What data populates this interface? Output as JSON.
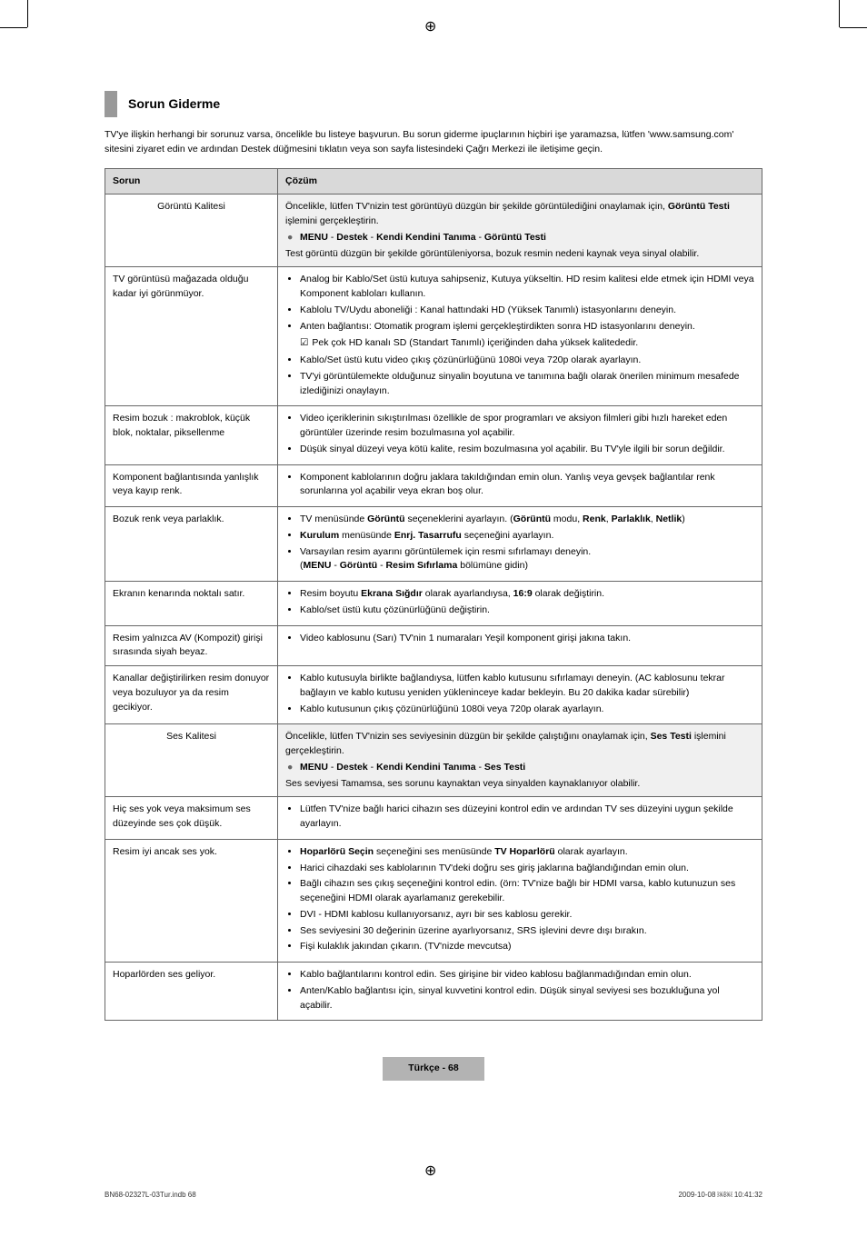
{
  "crop_marks": true,
  "section_title": "Sorun Giderme",
  "intro": "TV'ye ilişkin herhangi bir sorunuz varsa, öncelikle bu listeye başvurun. Bu sorun giderme ipuçlarının hiçbiri işe yaramazsa, lütfen 'www.samsung.com' sitesini ziyaret edin ve ardından Destek düğmesini tıklatın veya son sayfa listesindeki Çağrı Merkezi ile iletişime geçin.",
  "headers": {
    "problem": "Sorun",
    "solution": "Çözüm"
  },
  "rows": [
    {
      "category": "Görüntü Kalitesi",
      "solution_pre": "Öncelikle, lütfen TV'nizin test görüntüyü düzgün bir şekilde görüntülediğini onaylamak için, <b>Görüntü Testi</b> işlemini gerçekleştirin.",
      "menu_path": "MENU - Destek - Kendi Kendini Tanıma - Görüntü Testi",
      "solution_post": "Test görüntü düzgün bir şekilde görüntüleniyorsa, bozuk resmin nedeni kaynak veya sinyal olabilir."
    },
    {
      "problem": "TV görüntüsü mağazada olduğu kadar iyi görünmüyor.",
      "bullets": [
        "Analog bir Kablo/Set üstü kutuya sahipseniz, Kutuya yükseltin. HD resim kalitesi elde etmek için HDMI veya Komponent kabloları kullanın.",
        "Kablolu TV/Uydu aboneliği : Kanal hattındaki HD (Yüksek Tanımlı) istasyonlarını deneyin.",
        "Anten bağlantısı: Otomatik program işlemi gerçekleştirdikten sonra HD istasyonlarını deneyin."
      ],
      "note": "Pek çok HD kanalı SD (Standart Tanımlı) içeriğinden daha yüksek kalitededir.",
      "bullets2": [
        "Kablo/Set üstü kutu video çıkış çözünürlüğünü 1080i veya 720p olarak ayarlayın.",
        "TV'yi görüntülemekte olduğunuz sinyalin boyutuna ve tanımına bağlı olarak önerilen minimum mesafede izlediğinizi onaylayın."
      ]
    },
    {
      "problem": "Resim bozuk : makroblok, küçük blok, noktalar, piksellenme",
      "bullets": [
        "Video içeriklerinin sıkıştırılması özellikle de spor programları ve aksiyon filmleri gibi hızlı hareket eden görüntüler üzerinde resim bozulmasına yol açabilir.",
        "Düşük sinyal düzeyi veya kötü kalite, resim bozulmasına yol açabilir. Bu TV'yle ilgili bir sorun değildir."
      ]
    },
    {
      "problem": "Komponent bağlantısında yanlışlık veya kayıp renk.",
      "bullets": [
        "Komponent kablolarının doğru jaklara takıldığından emin olun. Yanlış veya gevşek bağlantılar renk sorunlarına yol açabilir veya ekran boş olur."
      ]
    },
    {
      "problem": "Bozuk renk veya parlaklık.",
      "bullets": [
        "TV menüsünde <b>Görüntü</b> seçeneklerini ayarlayın. (<b>Görüntü</b> modu, <b>Renk</b>, <b>Parlaklık</b>, <b>Netlik</b>)",
        "<b>Kurulum</b> menüsünde <b>Enrj. Tasarrufu</b> seçeneğini ayarlayın.",
        "Varsayılan resim ayarını görüntülemek için resmi sıfırlamayı deneyin.<br>(<b>MENU</b> - <b>Görüntü</b> - <b>Resim Sıfırlama</b> bölümüne gidin)"
      ]
    },
    {
      "problem": "Ekranın kenarında noktalı satır.",
      "bullets": [
        "Resim boyutu <b>Ekrana Sığdır</b> olarak ayarlandıysa, <b>16:9</b> olarak değiştirin.",
        "Kablo/set üstü kutu çözünürlüğünü değiştirin."
      ]
    },
    {
      "problem": "Resim yalnızca AV (Kompozit) girişi sırasında siyah beyaz.",
      "bullets": [
        "Video kablosunu (Sarı) TV'nin 1 numaraları Yeşil komponent girişi jakına takın."
      ]
    },
    {
      "problem": "Kanallar değiştirilirken resim donuyor veya bozuluyor ya da resim gecikiyor.",
      "bullets": [
        "Kablo kutusuyla birlikte bağlandıysa, lütfen kablo kutusunu sıfırlamayı deneyin. (AC kablosunu tekrar bağlayın ve kablo kutusu yeniden yükleninceye kadar bekleyin. Bu 20 dakika kadar sürebilir)",
        "Kablo kutusunun çıkış çözünürlüğünü 1080i veya 720p olarak ayarlayın."
      ]
    },
    {
      "category": "Ses Kalitesi",
      "solution_pre": "Öncelikle, lütfen TV'nizin ses seviyesinin düzgün bir şekilde çalıştığını onaylamak için, <b>Ses Testi</b> işlemini gerçekleştirin.",
      "menu_path": "MENU - Destek - Kendi Kendini Tanıma - Ses Testi",
      "solution_post": "Ses seviyesi Tamamsa, ses sorunu kaynaktan veya sinyalden kaynaklanıyor olabilir."
    },
    {
      "problem": "Hiç ses yok veya maksimum ses düzeyinde ses çok düşük.",
      "bullets": [
        "Lütfen TV'nize bağlı harici cihazın ses düzeyini kontrol edin ve ardından TV ses düzeyini uygun şekilde ayarlayın."
      ]
    },
    {
      "problem": "Resim iyi ancak ses yok.",
      "bullets": [
        "<b>Hoparlörü Seçin</b> seçeneğini ses menüsünde <b>TV Hoparlörü</b> olarak ayarlayın.",
        "Harici cihazdaki ses kablolarının TV'deki doğru ses giriş jaklarına bağlandığından emin olun.",
        "Bağlı cihazın ses çıkış seçeneğini kontrol edin. (örn: TV'nize bağlı bir HDMI varsa, kablo kutunuzun ses seçeneğini HDMI olarak ayarlamanız gerekebilir.",
        "DVI - HDMI kablosu kullanıyorsanız, ayrı bir ses kablosu gerekir.",
        "Ses seviyesini 30 değerinin üzerine ayarlıyorsanız, SRS işlevini devre dışı bırakın.",
        "Fişi kulaklık jakından çıkarın. (TV'nizde mevcutsa)"
      ]
    },
    {
      "problem": "Hoparlörden ses geliyor.",
      "bullets": [
        "Kablo bağlantılarını kontrol edin. Ses girişine bir video kablosu bağlanmadığından emin olun.",
        "Anten/Kablo bağlantısı için, sinyal kuvvetini kontrol edin. Düşük sinyal seviyesi ses bozukluğuna yol açabilir."
      ]
    }
  ],
  "page_label": "Türkçe - 68",
  "doc_footer_left": "BN68-02327L-03Tur.indb   68",
  "doc_footer_right": "2009-10-08   ￼￼ 10:41:32"
}
